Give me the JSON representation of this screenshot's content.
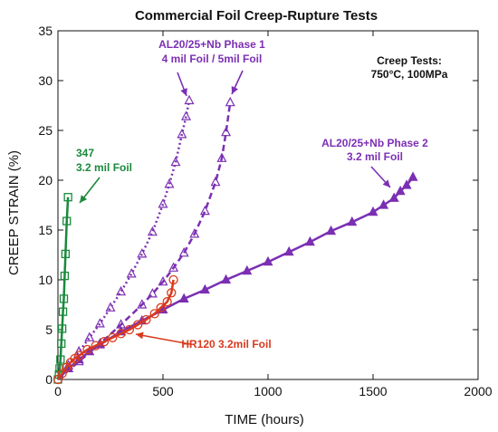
{
  "chart_data": {
    "type": "scatter",
    "title": "Commercial Foil Creep-Rupture Tests",
    "xlabel": "TIME (hours)",
    "ylabel": "CREEP STRAIN (%)",
    "xlim": [
      0,
      2000
    ],
    "ylim": [
      0,
      35
    ],
    "x_ticks": [
      0,
      500,
      1000,
      1500,
      2000
    ],
    "y_ticks": [
      0,
      5,
      10,
      15,
      20,
      25,
      30,
      35
    ],
    "grid": false,
    "conditions": [
      "Creep Tests:",
      "750°C, 100MPa"
    ],
    "annotations": [
      {
        "key": "a347",
        "lines": [
          "347",
          "3.2 mil Foil"
        ],
        "color": "#1a8a3c"
      },
      {
        "key": "phase1",
        "lines": [
          "AL20/25+Nb Phase 1",
          "4 mil Foil / 5mil Foil"
        ],
        "color": "#7b2fb3"
      },
      {
        "key": "phase2",
        "lines": [
          "AL20/25+Nb Phase 2",
          "3.2 mil Foil"
        ],
        "color": "#7b2fb3"
      },
      {
        "key": "hr120",
        "lines": [
          "HR120 3.2mil Foil"
        ],
        "color": "#d93a1e"
      }
    ],
    "series": [
      {
        "id": "s347",
        "color": "#1a8a3c",
        "marker": "square-open",
        "line": "solid",
        "x": [
          0,
          5,
          8,
          12,
          16,
          20,
          24,
          28,
          32,
          36,
          42,
          48
        ],
        "y": [
          0,
          0.5,
          1.1,
          2.0,
          3.6,
          5.1,
          6.8,
          8.1,
          10.4,
          12.6,
          15.9,
          18.3
        ]
      },
      {
        "id": "phase1_4mil",
        "color": "#7b2fb3",
        "marker": "triangle-open",
        "line": "dotted",
        "x": [
          0,
          50,
          100,
          150,
          200,
          250,
          300,
          350,
          400,
          450,
          500,
          530,
          560,
          590,
          610,
          625
        ],
        "y": [
          0,
          1.4,
          2.8,
          4.2,
          5.6,
          7.2,
          8.8,
          10.6,
          12.6,
          14.8,
          17.6,
          19.6,
          21.8,
          24.6,
          26.4,
          28.0
        ]
      },
      {
        "id": "phase1_5mil",
        "color": "#7b2fb3",
        "marker": "triangle-open",
        "line": "dashed",
        "x": [
          0,
          100,
          200,
          300,
          400,
          450,
          500,
          550,
          600,
          650,
          700,
          750,
          780,
          800,
          820
        ],
        "y": [
          0,
          1.8,
          3.6,
          5.5,
          7.5,
          8.6,
          9.8,
          11.2,
          12.7,
          14.6,
          16.9,
          19.8,
          22.2,
          24.8,
          27.8
        ]
      },
      {
        "id": "phase2",
        "color": "#7b2fb3",
        "marker": "triangle-filled",
        "line": "solid",
        "x": [
          0,
          50,
          100,
          150,
          200,
          300,
          400,
          500,
          600,
          700,
          800,
          900,
          1000,
          1100,
          1200,
          1300,
          1400,
          1500,
          1550,
          1600,
          1630,
          1660,
          1690
        ],
        "y": [
          0,
          1.1,
          2.0,
          2.8,
          3.5,
          4.8,
          5.9,
          7.0,
          8.1,
          9.0,
          10.0,
          10.9,
          11.8,
          12.8,
          13.8,
          14.9,
          15.8,
          16.8,
          17.5,
          18.2,
          18.9,
          19.5,
          20.3
        ]
      },
      {
        "id": "hr120",
        "color": "#d93a1e",
        "marker": "circle-open",
        "line": "solid",
        "x": [
          0,
          20,
          40,
          60,
          80,
          100,
          140,
          180,
          220,
          260,
          300,
          340,
          380,
          420,
          460,
          490,
          520,
          540,
          550
        ],
        "y": [
          0,
          0.6,
          1.2,
          1.7,
          2.1,
          2.4,
          3.0,
          3.4,
          3.8,
          4.2,
          4.6,
          5.0,
          5.5,
          6.0,
          6.6,
          7.2,
          7.8,
          8.7,
          10.0
        ]
      }
    ]
  }
}
